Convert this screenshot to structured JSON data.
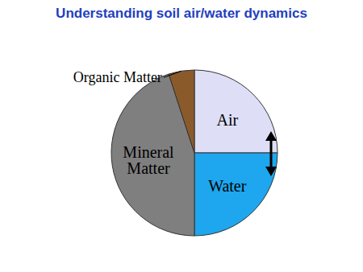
{
  "chart_data": {
    "type": "pie",
    "title": "Understanding soil air/water dynamics",
    "categories": [
      "Air",
      "Water",
      "Mineral Matter",
      "Organic Matter"
    ],
    "values": [
      25,
      25,
      45,
      5
    ],
    "colors": [
      "#dedef6",
      "#1ea6ee",
      "#7f7f7f",
      "#8b5a2b"
    ]
  }
}
